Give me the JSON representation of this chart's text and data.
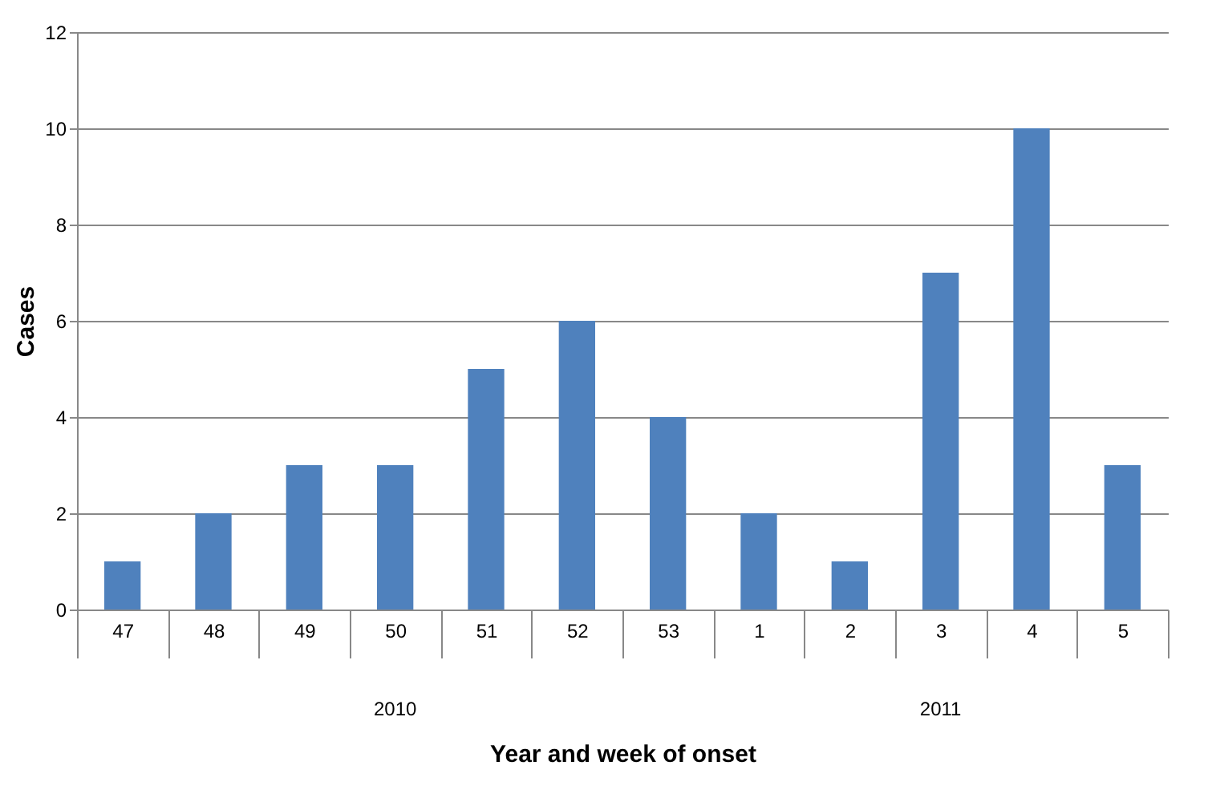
{
  "chart_data": {
    "type": "bar",
    "xlabel": "Year and week of onset",
    "ylabel": "Cases",
    "categories": [
      "47",
      "48",
      "49",
      "50",
      "51",
      "52",
      "53",
      "1",
      "2",
      "3",
      "4",
      "5"
    ],
    "values": [
      1,
      2,
      3,
      3,
      5,
      6,
      4,
      2,
      1,
      7,
      10,
      3
    ],
    "color": "#4f81bd",
    "ylim": [
      0,
      12
    ],
    "yticks": [
      0,
      2,
      4,
      6,
      8,
      10,
      12
    ],
    "grid": "y",
    "annotations": [
      "2010",
      "2011"
    ]
  }
}
